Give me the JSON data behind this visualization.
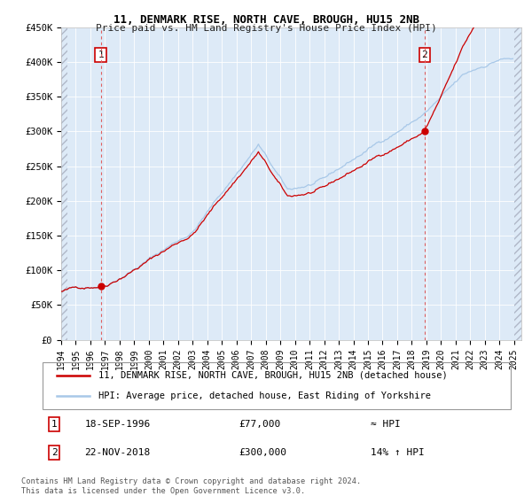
{
  "title1": "11, DENMARK RISE, NORTH CAVE, BROUGH, HU15 2NB",
  "title2": "Price paid vs. HM Land Registry's House Price Index (HPI)",
  "sale1_label": "18-SEP-1996",
  "sale1_amount": "£77,000",
  "sale1_hpi": "≈ HPI",
  "sale2_label": "22-NOV-2018",
  "sale2_amount": "£300,000",
  "sale2_hpi": "14% ↑ HPI",
  "legend1": "11, DENMARK RISE, NORTH CAVE, BROUGH, HU15 2NB (detached house)",
  "legend2": "HPI: Average price, detached house, East Riding of Yorkshire",
  "footnote1": "Contains HM Land Registry data © Crown copyright and database right 2024.",
  "footnote2": "This data is licensed under the Open Government Licence v3.0.",
  "hpi_color": "#a8c8e8",
  "price_color": "#cc0000",
  "dot_color": "#cc0000",
  "vline_color": "#e06060",
  "plot_bg": "#ddeaf7",
  "grid_color": "#ffffff",
  "ylim": [
    0,
    450000
  ],
  "yticks": [
    0,
    50000,
    100000,
    150000,
    200000,
    250000,
    300000,
    350000,
    400000,
    450000
  ],
  "xlim_start": 1994.0,
  "xlim_end": 2025.5,
  "sale1_year": 1996.7083,
  "sale1_price": 77000,
  "sale2_year": 2018.875,
  "sale2_price": 300000
}
